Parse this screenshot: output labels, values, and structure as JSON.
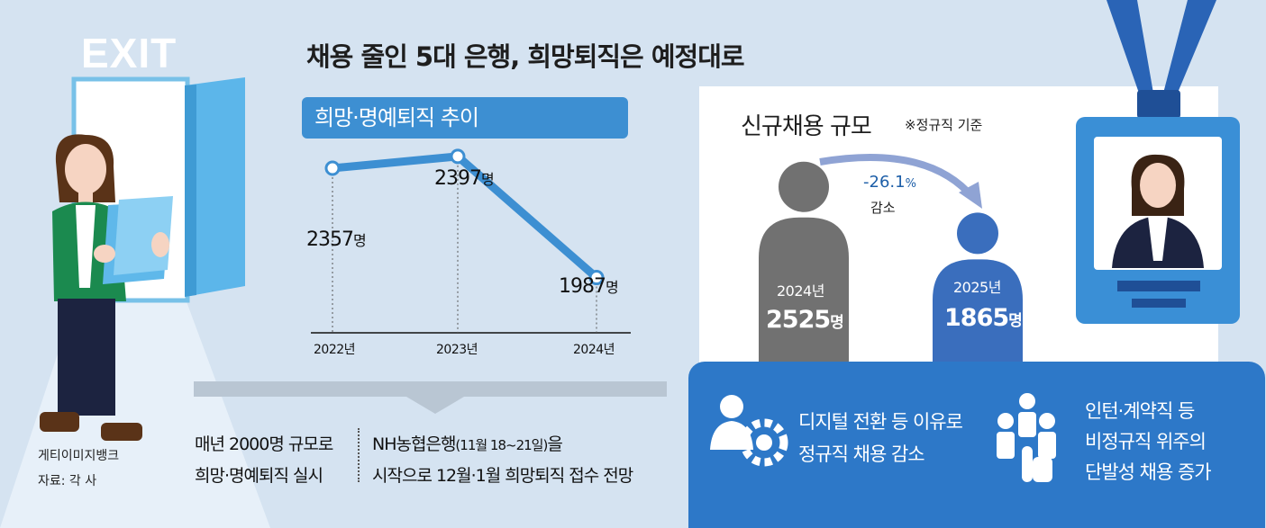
{
  "title": "채용 줄인 5대 은행, 희망퇴직은 예정대로",
  "exit_sign": "EXIT",
  "image_credit": "게티이미지뱅크",
  "source": "자료: 각 사",
  "left_chart": {
    "banner": "희망·명예퇴직 추이",
    "note_left": [
      "매년 2000명 규모로",
      "희망·명예퇴직 실시"
    ],
    "note_right_prefix": "NH농협은행",
    "note_right_paren": "(11월 18~21일)",
    "note_right_suffix": "을",
    "note_right_line2": "시작으로 12월·1월 희망퇴직 접수 전망"
  },
  "right_chart": {
    "title": "신규채용 규모",
    "note": "※정규직 기준",
    "change_value": "-26.1",
    "change_unit": "%",
    "change_label": "감소",
    "reasons": [
      [
        "디지털 전환 등 이유로",
        "정규직 채용 감소"
      ],
      [
        "인턴·계약직 등",
        "비정규직 위주의",
        "단발성 채용 증가"
      ]
    ]
  },
  "colors": {
    "line": "#3d8fd2",
    "bar_2024": "#717171",
    "bar_2025": "#3a6ebd",
    "banner": "#3d8fd2",
    "background": "#d5e3f1",
    "reason_box": "#2d78c8"
  },
  "chart_data": [
    {
      "type": "line",
      "title": "희망·명예퇴직 추이",
      "categories": [
        "2022년",
        "2023년",
        "2024년"
      ],
      "values": [
        2357,
        2397,
        1987
      ],
      "value_labels": [
        "2357",
        "2397",
        "1987"
      ],
      "unit": "명",
      "xlabel": "",
      "ylabel": ""
    },
    {
      "type": "bar",
      "title": "신규채용 규모",
      "categories": [
        "2024년",
        "2025년"
      ],
      "values": [
        2525,
        1865
      ],
      "value_labels": [
        "2525",
        "1865"
      ],
      "unit": "명",
      "xlabel": "",
      "ylabel": ""
    }
  ]
}
